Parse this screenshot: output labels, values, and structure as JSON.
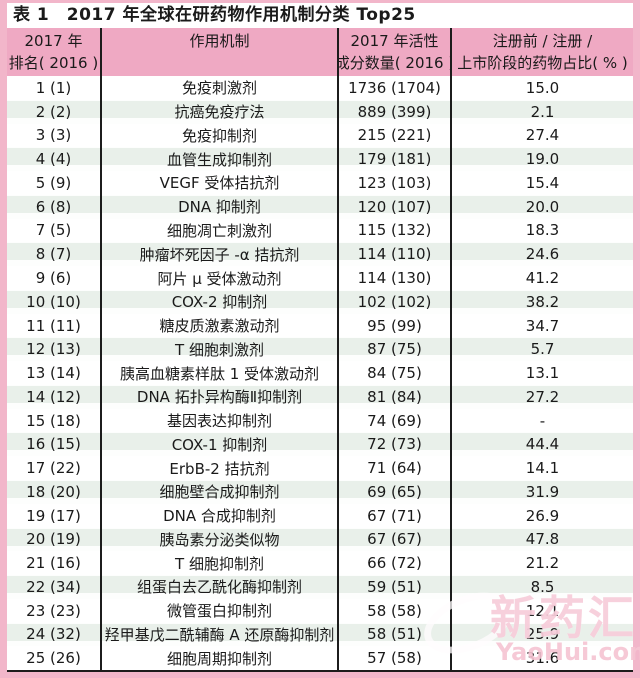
{
  "table": {
    "title": "表 1　2017 年全球在研药物作用机制分类 Top25",
    "columns": [
      {
        "line1": "2017 年",
        "line2": "排名( 2016 )"
      },
      {
        "line1": "作用机制",
        "line2": ""
      },
      {
        "line1": "2017 年活性",
        "line2": "成分数量( 2016 )"
      },
      {
        "line1": "注册前 / 注册 /",
        "line2": "上市阶段的药物占比( % )"
      }
    ],
    "rows": [
      {
        "rank": "1 (1)",
        "mechanism": "免疫刺激剂",
        "count": "1736 (1704)",
        "percent": "15.0"
      },
      {
        "rank": "2 (2)",
        "mechanism": "抗癌免疫疗法",
        "count": "889 (399)",
        "percent": "2.1"
      },
      {
        "rank": "3 (3)",
        "mechanism": "免疫抑制剂",
        "count": "215 (221)",
        "percent": "27.4"
      },
      {
        "rank": "4 (4)",
        "mechanism": "血管生成抑制剂",
        "count": "179 (181)",
        "percent": "19.0"
      },
      {
        "rank": "5 (9)",
        "mechanism": "VEGF 受体拮抗剂",
        "count": "123 (103)",
        "percent": "15.4"
      },
      {
        "rank": "6 (8)",
        "mechanism": "DNA 抑制剂",
        "count": "120 (107)",
        "percent": "20.0"
      },
      {
        "rank": "7 (5)",
        "mechanism": "细胞凋亡刺激剂",
        "count": "115 (132)",
        "percent": "18.3"
      },
      {
        "rank": "8 (7)",
        "mechanism": "肿瘤坏死因子 -α 拮抗剂",
        "count": "114 (110)",
        "percent": "24.6"
      },
      {
        "rank": "9 (6)",
        "mechanism": "阿片 μ 受体激动剂",
        "count": "114 (130)",
        "percent": "41.2"
      },
      {
        "rank": "10 (10)",
        "mechanism": "COX-2 抑制剂",
        "count": "102 (102)",
        "percent": "38.2"
      },
      {
        "rank": "11 (11)",
        "mechanism": "糖皮质激素激动剂",
        "count": "95 (99)",
        "percent": "34.7"
      },
      {
        "rank": "12 (13)",
        "mechanism": "T 细胞刺激剂",
        "count": "87 (75)",
        "percent": "5.7"
      },
      {
        "rank": "13 (14)",
        "mechanism": "胰高血糖素样肽 1 受体激动剂",
        "count": "84 (75)",
        "percent": "13.1"
      },
      {
        "rank": "14 (12)",
        "mechanism": "DNA 拓扑异构酶Ⅱ抑制剂",
        "count": "81 (84)",
        "percent": "27.2"
      },
      {
        "rank": "15 (18)",
        "mechanism": "基因表达抑制剂",
        "count": "74 (69)",
        "percent": "-"
      },
      {
        "rank": "16 (15)",
        "mechanism": "COX-1 抑制剂",
        "count": "72 (73)",
        "percent": "44.4"
      },
      {
        "rank": "17 (22)",
        "mechanism": "ErbB-2 拮抗剂",
        "count": "71 (64)",
        "percent": "14.1"
      },
      {
        "rank": "18 (20)",
        "mechanism": "细胞壁合成抑制剂",
        "count": "69 (65)",
        "percent": "31.9"
      },
      {
        "rank": "19 (17)",
        "mechanism": "DNA 合成抑制剂",
        "count": "67 (71)",
        "percent": "26.9"
      },
      {
        "rank": "20 (19)",
        "mechanism": "胰岛素分泌类似物",
        "count": "67 (67)",
        "percent": "47.8"
      },
      {
        "rank": "21 (16)",
        "mechanism": "T 细胞抑制剂",
        "count": "66 (72)",
        "percent": "21.2"
      },
      {
        "rank": "22 (34)",
        "mechanism": "组蛋白去乙酰化酶抑制剂",
        "count": "59 (51)",
        "percent": "8.5"
      },
      {
        "rank": "23 (23)",
        "mechanism": "微管蛋白抑制剂",
        "count": "58 (58)",
        "percent": "12.1"
      },
      {
        "rank": "24 (32)",
        "mechanism": "羟甲基戊二酰辅酶 A 还原酶抑制剂",
        "count": "58 (51)",
        "percent": "25.9"
      },
      {
        "rank": "25 (26)",
        "mechanism": "细胞周期抑制剂",
        "count": "57 (58)",
        "percent": "31.6"
      }
    ]
  },
  "watermark": {
    "brand": "新药汇",
    "domain": "YaoHui.com"
  },
  "colors": {
    "frame_pink": "#f2b6ca",
    "header_pink": "#efa9c3",
    "stripe_green": "#e9f0ea",
    "divider_black": "#1c1c1c",
    "text_black": "#1a1a1a",
    "watermark_pink": "#f6c8d6"
  }
}
